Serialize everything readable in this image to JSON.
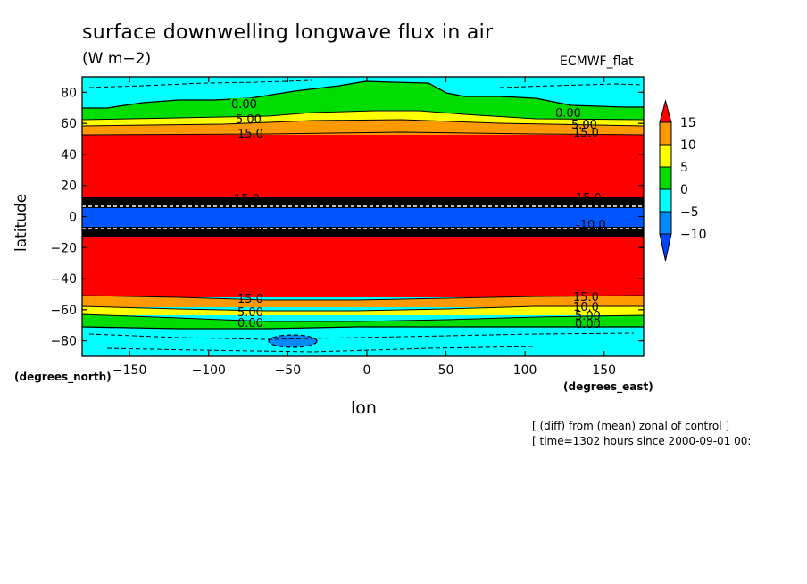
{
  "chart_data": {
    "type": "heatmap",
    "title": "surface downwelling longwave flux in air",
    "units": "(W m−2)",
    "source": "ECMWF_flat",
    "xlabel": "lon",
    "ylabel": "latitude",
    "xunits": "(degrees_east)",
    "yunits": "(degrees_north)",
    "xlim": [
      -180,
      175
    ],
    "ylim": [
      -90,
      90
    ],
    "x_ticks": [
      -150,
      -100,
      -50,
      0,
      50,
      100,
      150
    ],
    "x_tick_labels": [
      "−150",
      "−100",
      "−50",
      "0",
      "50",
      "100",
      "150"
    ],
    "y_ticks": [
      -80,
      -60,
      -40,
      -20,
      0,
      20,
      40,
      60,
      80
    ],
    "y_tick_labels": [
      "−80",
      "−60",
      "−40",
      "−20",
      "0",
      "20",
      "40",
      "60",
      "80"
    ],
    "colorbar": {
      "levels": [
        15,
        10,
        5,
        0,
        -5,
        -10
      ],
      "labels": [
        "15",
        "10",
        "5",
        "0",
        "−5",
        "−10"
      ],
      "colors": {
        "above_15": "#ff0000",
        "10_15": "#ff9900",
        "5_10": "#ffff00",
        "0_5": "#00dd00",
        "m5_0": "#00ffff",
        "m10_m5": "#0088ff",
        "below_m10": "#0044ff"
      }
    },
    "bands": [
      {
        "lat_from": 90,
        "lat_to": 70,
        "range": "-5..0"
      },
      {
        "lat_from": 70,
        "lat_to": 62,
        "range": "0..5"
      },
      {
        "lat_from": 62,
        "lat_to": 58,
        "range": "5..10"
      },
      {
        "lat_from": 58,
        "lat_to": 53,
        "range": "10..15"
      },
      {
        "lat_from": 53,
        "lat_to": 12,
        "range": ">15"
      },
      {
        "lat_from": 12,
        "lat_to": 7,
        "range": "sharp gradient"
      },
      {
        "lat_from": 7,
        "lat_to": -7,
        "range": "<-10"
      },
      {
        "lat_from": -7,
        "lat_to": -12,
        "range": "sharp gradient"
      },
      {
        "lat_from": -12,
        "lat_to": -50,
        "range": ">15"
      },
      {
        "lat_from": -50,
        "lat_to": -56,
        "range": "10..15"
      },
      {
        "lat_from": -56,
        "lat_to": -61,
        "range": "5..10"
      },
      {
        "lat_from": -61,
        "lat_to": -70,
        "range": "0..5"
      },
      {
        "lat_from": -70,
        "lat_to": -90,
        "range": "-5..0"
      }
    ],
    "contour_labels": {
      "north_zero": "0.00",
      "north_five": "5.00",
      "north_fifteen": "15.0",
      "equator_high": "15.0",
      "equator_low": "-10.0",
      "south_fifteen": "15.0",
      "south_ten": "10.0",
      "south_five": "5.00",
      "south_zero": "0.00"
    }
  },
  "notes": {
    "line1": "[ (diff) from (mean) zonal of control ]",
    "line2": "[ time=1302 hours since 2000-09-01 00:"
  }
}
